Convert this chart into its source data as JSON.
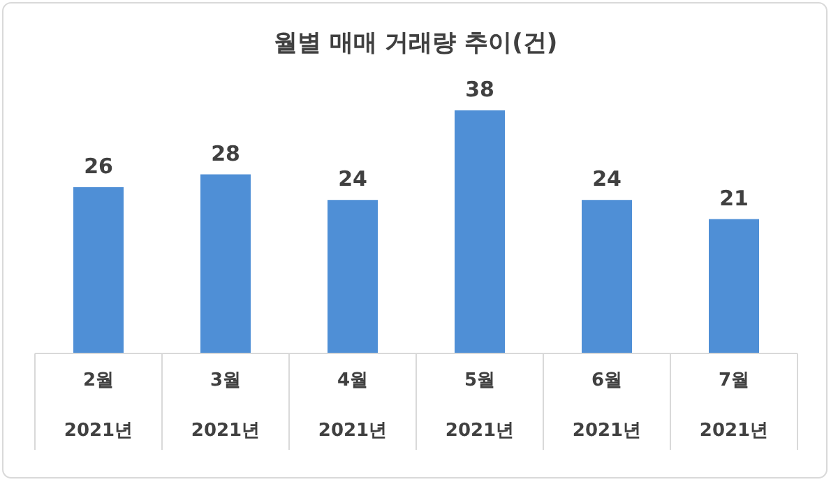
{
  "chart_data": {
    "type": "bar",
    "title": "월별 매매 거래량 추이(건)",
    "categories": [
      "2월\n2021년",
      "3월\n2021년",
      "4월\n2021년",
      "5월\n2021년",
      "6월\n2021년",
      "7월\n2021년"
    ],
    "values": [
      26,
      28,
      24,
      38,
      24,
      21
    ],
    "color": "#4f8fd6",
    "data_labels": true
  }
}
